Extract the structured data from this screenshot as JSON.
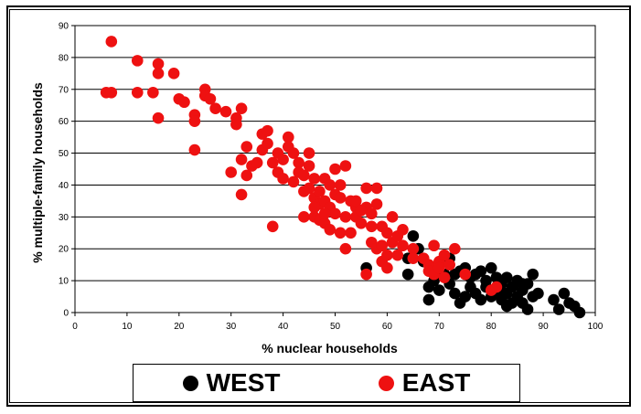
{
  "chart_data": {
    "type": "scatter",
    "title": "",
    "xlabel": "% nuclear households",
    "ylabel": "% multiple-family households",
    "xlim": [
      0,
      100
    ],
    "ylim": [
      0,
      90
    ],
    "x_ticks": [
      "0",
      "10",
      "20",
      "30",
      "40",
      "50",
      "60",
      "70",
      "80",
      "90",
      "100"
    ],
    "y_ticks": [
      "0",
      "10",
      "20",
      "30",
      "40",
      "50",
      "60",
      "70",
      "80",
      "90"
    ],
    "grid": "horizontal",
    "legend_position": "bottom",
    "series": [
      {
        "name": "WEST",
        "color": "#000000",
        "points": [
          [
            56,
            14
          ],
          [
            64,
            12
          ],
          [
            65,
            24
          ],
          [
            64,
            17
          ],
          [
            66,
            20
          ],
          [
            67,
            16
          ],
          [
            68,
            8
          ],
          [
            68,
            4
          ],
          [
            69,
            10
          ],
          [
            70,
            13
          ],
          [
            71,
            16
          ],
          [
            72,
            17
          ],
          [
            73,
            12
          ],
          [
            73,
            6
          ],
          [
            74,
            3
          ],
          [
            75,
            14
          ],
          [
            76,
            8
          ],
          [
            77,
            6
          ],
          [
            77,
            12
          ],
          [
            78,
            4
          ],
          [
            79,
            10
          ],
          [
            80,
            14
          ],
          [
            81,
            7
          ],
          [
            81,
            11
          ],
          [
            82,
            4
          ],
          [
            82,
            9
          ],
          [
            83,
            2
          ],
          [
            83,
            6
          ],
          [
            84,
            8
          ],
          [
            85,
            5
          ],
          [
            85,
            10
          ],
          [
            86,
            3
          ],
          [
            86,
            7
          ],
          [
            87,
            1
          ],
          [
            87,
            9
          ],
          [
            88,
            5
          ],
          [
            88,
            12
          ],
          [
            89,
            6
          ],
          [
            92,
            4
          ],
          [
            93,
            1
          ],
          [
            94,
            6
          ],
          [
            95,
            3
          ],
          [
            96,
            2
          ],
          [
            97,
            0
          ],
          [
            79,
            8
          ],
          [
            83,
            11
          ],
          [
            82,
            6
          ],
          [
            86,
            9
          ],
          [
            80,
            5
          ],
          [
            76,
            11
          ],
          [
            74,
            13
          ],
          [
            78,
            13
          ],
          [
            84,
            3
          ],
          [
            75,
            5
          ],
          [
            71,
            12
          ],
          [
            70,
            7
          ],
          [
            72,
            9
          ]
        ]
      },
      {
        "name": "EAST",
        "color": "#ee1111",
        "points": [
          [
            7,
            85
          ],
          [
            6,
            69
          ],
          [
            7,
            69
          ],
          [
            12,
            79
          ],
          [
            12,
            69
          ],
          [
            15,
            69
          ],
          [
            16,
            78
          ],
          [
            16,
            75
          ],
          [
            16,
            61
          ],
          [
            19,
            75
          ],
          [
            20,
            67
          ],
          [
            21,
            66
          ],
          [
            23,
            62
          ],
          [
            23,
            60
          ],
          [
            23,
            51
          ],
          [
            25,
            70
          ],
          [
            25,
            68
          ],
          [
            26,
            67
          ],
          [
            27,
            64
          ],
          [
            29,
            63
          ],
          [
            30,
            44
          ],
          [
            31,
            61
          ],
          [
            31,
            59
          ],
          [
            32,
            64
          ],
          [
            32,
            48
          ],
          [
            32,
            37
          ],
          [
            33,
            52
          ],
          [
            33,
            43
          ],
          [
            34,
            46
          ],
          [
            35,
            47
          ],
          [
            36,
            56
          ],
          [
            36,
            51
          ],
          [
            37,
            57
          ],
          [
            37,
            53
          ],
          [
            38,
            47
          ],
          [
            38,
            27
          ],
          [
            39,
            50
          ],
          [
            39,
            44
          ],
          [
            40,
            48
          ],
          [
            40,
            42
          ],
          [
            41,
            55
          ],
          [
            41,
            52
          ],
          [
            42,
            50
          ],
          [
            42,
            41
          ],
          [
            43,
            47
          ],
          [
            43,
            44
          ],
          [
            44,
            43
          ],
          [
            44,
            30
          ],
          [
            45,
            50
          ],
          [
            45,
            46
          ],
          [
            45,
            39
          ],
          [
            46,
            42
          ],
          [
            46,
            36
          ],
          [
            46,
            30
          ],
          [
            47,
            38
          ],
          [
            47,
            34
          ],
          [
            47,
            29
          ],
          [
            48,
            42
          ],
          [
            48,
            35
          ],
          [
            48,
            28
          ],
          [
            49,
            40
          ],
          [
            49,
            33
          ],
          [
            49,
            26
          ],
          [
            50,
            45
          ],
          [
            50,
            37
          ],
          [
            50,
            31
          ],
          [
            51,
            40
          ],
          [
            51,
            36
          ],
          [
            51,
            25
          ],
          [
            52,
            46
          ],
          [
            52,
            30
          ],
          [
            52,
            20
          ],
          [
            53,
            35
          ],
          [
            53,
            25
          ],
          [
            54,
            33
          ],
          [
            54,
            30
          ],
          [
            55,
            28
          ],
          [
            56,
            39
          ],
          [
            56,
            33
          ],
          [
            56,
            12
          ],
          [
            57,
            31
          ],
          [
            57,
            22
          ],
          [
            58,
            34
          ],
          [
            58,
            20
          ],
          [
            58,
            39
          ],
          [
            59,
            27
          ],
          [
            59,
            21
          ],
          [
            59,
            16
          ],
          [
            60,
            25
          ],
          [
            60,
            18
          ],
          [
            60,
            14
          ],
          [
            61,
            30
          ],
          [
            61,
            22
          ],
          [
            62,
            24
          ],
          [
            62,
            18
          ],
          [
            63,
            26
          ],
          [
            63,
            21
          ],
          [
            65,
            20
          ],
          [
            65,
            17
          ],
          [
            67,
            17
          ],
          [
            68,
            15
          ],
          [
            68,
            13
          ],
          [
            69,
            12
          ],
          [
            69,
            21
          ],
          [
            70,
            16
          ],
          [
            70,
            14
          ],
          [
            71,
            18
          ],
          [
            71,
            11
          ],
          [
            72,
            15
          ],
          [
            73,
            20
          ],
          [
            75,
            12
          ],
          [
            80,
            7
          ],
          [
            81,
            8
          ],
          [
            44,
            38
          ],
          [
            46,
            33
          ],
          [
            48,
            31
          ],
          [
            54,
            35
          ],
          [
            57,
            27
          ],
          [
            55,
            32
          ]
        ]
      }
    ]
  },
  "legend": {
    "items": [
      {
        "label": "WEST",
        "color": "#000000"
      },
      {
        "label": "EAST",
        "color": "#ee1111"
      }
    ]
  }
}
